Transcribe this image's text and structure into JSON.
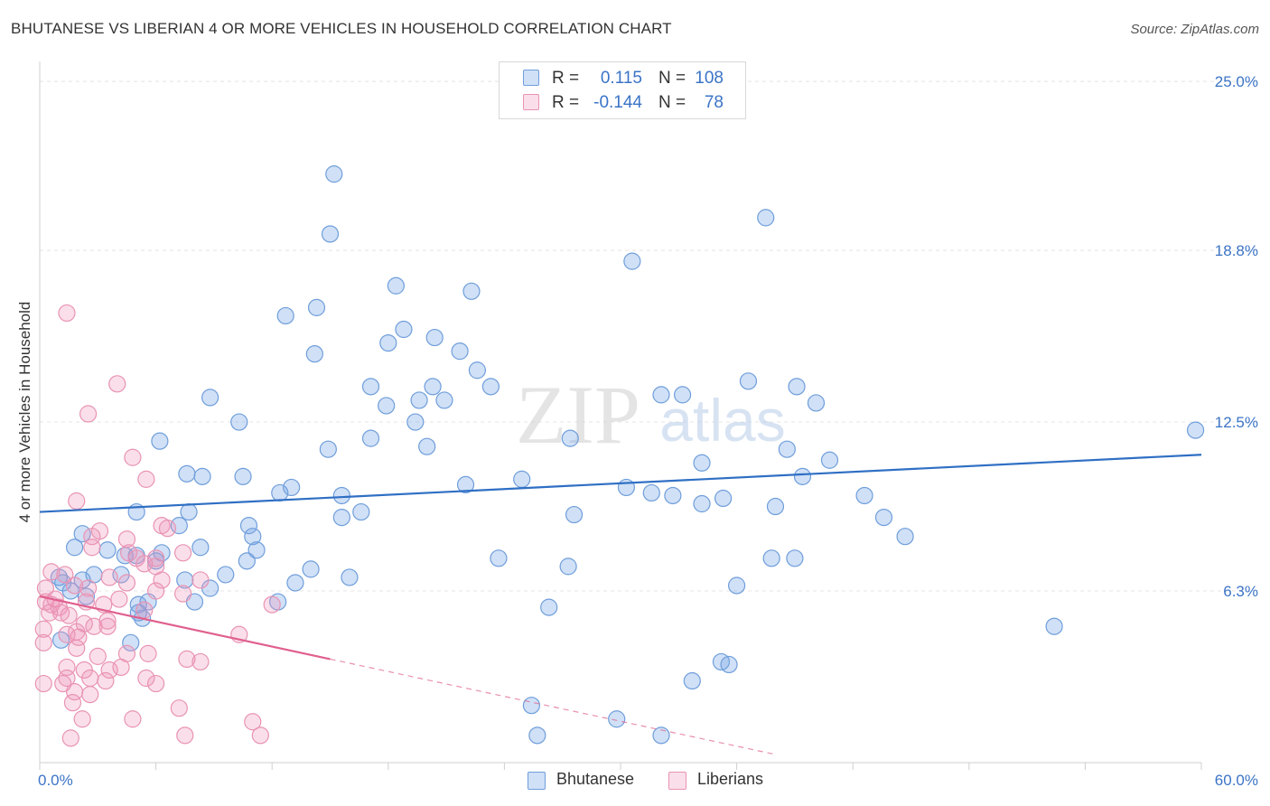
{
  "chart_data": {
    "type": "scatter",
    "title": "BHUTANESE VS LIBERIAN 4 OR MORE VEHICLES IN HOUSEHOLD CORRELATION CHART",
    "source": "Source: ZipAtlas.com",
    "xlabel": "",
    "ylabel": "4 or more Vehicles in Household",
    "xlim": [
      0,
      60
    ],
    "ylim": [
      0,
      25.6
    ],
    "x_tick_labels": [
      "0.0%",
      "60.0%"
    ],
    "y_ticks": [
      6.3,
      12.5,
      18.8,
      25.0
    ],
    "y_tick_labels": [
      "6.3%",
      "12.5%",
      "18.8%",
      "25.0%"
    ],
    "watermark": {
      "left": "ZIP",
      "right": "atlas"
    },
    "colors": {
      "bhutanese_fill": "rgba(120,165,230,0.35)",
      "bhutanese_stroke": "#6f9edb",
      "bhutanese_line": "#2f6fc4",
      "liberian_fill": "rgba(240,150,185,0.30)",
      "liberian_stroke": "#e993b3",
      "liberian_line": "#e0608e",
      "axis_label": "#3b74c6",
      "grid": "#e4e4e4"
    },
    "stats": [
      {
        "series": "Bhutanese",
        "r_label": "R =",
        "r": "0.115",
        "n_label": "N =",
        "n": "108"
      },
      {
        "series": "Liberians",
        "r_label": "R =",
        "r": "-0.144",
        "n_label": "N =",
        "n": "78"
      }
    ],
    "legend": [
      "Bhutanese",
      "Liberians"
    ],
    "series": [
      {
        "name": "Bhutanese",
        "trend": {
          "x0": 0,
          "y0": 9.2,
          "x1": 60,
          "y1": 11.3
        },
        "points": [
          [
            15.2,
            21.6
          ],
          [
            37.5,
            20.0
          ],
          [
            15.0,
            19.4
          ],
          [
            30.6,
            18.4
          ],
          [
            18.4,
            17.5
          ],
          [
            22.3,
            17.3
          ],
          [
            14.3,
            16.7
          ],
          [
            12.7,
            16.4
          ],
          [
            18.8,
            15.9
          ],
          [
            20.4,
            15.6
          ],
          [
            18.0,
            15.4
          ],
          [
            14.2,
            15.0
          ],
          [
            21.7,
            15.1
          ],
          [
            22.6,
            14.4
          ],
          [
            17.1,
            13.8
          ],
          [
            20.3,
            13.8
          ],
          [
            23.3,
            13.8
          ],
          [
            8.8,
            13.4
          ],
          [
            36.6,
            14.0
          ],
          [
            39.1,
            13.8
          ],
          [
            32.1,
            13.5
          ],
          [
            33.2,
            13.5
          ],
          [
            19.6,
            13.3
          ],
          [
            20.9,
            13.3
          ],
          [
            17.9,
            13.1
          ],
          [
            40.1,
            13.2
          ],
          [
            10.3,
            12.5
          ],
          [
            19.4,
            12.5
          ],
          [
            17.1,
            11.9
          ],
          [
            27.4,
            11.9
          ],
          [
            6.2,
            11.8
          ],
          [
            20.0,
            11.6
          ],
          [
            14.9,
            11.5
          ],
          [
            38.6,
            11.5
          ],
          [
            39.4,
            10.5
          ],
          [
            34.2,
            11.0
          ],
          [
            40.8,
            11.1
          ],
          [
            7.6,
            10.6
          ],
          [
            8.4,
            10.5
          ],
          [
            10.5,
            10.5
          ],
          [
            24.9,
            10.4
          ],
          [
            22.0,
            10.2
          ],
          [
            13.0,
            10.1
          ],
          [
            12.4,
            9.9
          ],
          [
            15.6,
            9.8
          ],
          [
            30.3,
            10.1
          ],
          [
            31.6,
            9.9
          ],
          [
            32.7,
            9.8
          ],
          [
            34.2,
            9.5
          ],
          [
            35.3,
            9.7
          ],
          [
            38.0,
            9.4
          ],
          [
            42.6,
            9.8
          ],
          [
            43.6,
            9.0
          ],
          [
            5.0,
            9.2
          ],
          [
            7.7,
            9.2
          ],
          [
            16.6,
            9.2
          ],
          [
            15.6,
            9.0
          ],
          [
            27.6,
            9.1
          ],
          [
            7.2,
            8.7
          ],
          [
            10.8,
            8.7
          ],
          [
            2.2,
            8.4
          ],
          [
            44.7,
            8.3
          ],
          [
            8.3,
            7.9
          ],
          [
            11.2,
            7.8
          ],
          [
            1.8,
            7.9
          ],
          [
            3.5,
            7.8
          ],
          [
            6.3,
            7.7
          ],
          [
            4.4,
            7.6
          ],
          [
            5.0,
            7.6
          ],
          [
            10.7,
            7.4
          ],
          [
            23.7,
            7.5
          ],
          [
            37.8,
            7.5
          ],
          [
            39.0,
            7.5
          ],
          [
            14.0,
            7.1
          ],
          [
            2.8,
            6.9
          ],
          [
            4.2,
            6.9
          ],
          [
            9.6,
            6.9
          ],
          [
            7.5,
            6.7
          ],
          [
            13.2,
            6.6
          ],
          [
            16.0,
            6.8
          ],
          [
            1.2,
            6.6
          ],
          [
            2.2,
            6.7
          ],
          [
            8.8,
            6.4
          ],
          [
            1.6,
            6.3
          ],
          [
            5.1,
            5.8
          ],
          [
            8.0,
            5.9
          ],
          [
            12.3,
            5.9
          ],
          [
            5.6,
            5.9
          ],
          [
            36.0,
            6.5
          ],
          [
            26.3,
            5.7
          ],
          [
            5.3,
            5.3
          ],
          [
            5.1,
            5.5
          ],
          [
            52.4,
            5.0
          ],
          [
            1.1,
            4.5
          ],
          [
            4.7,
            4.4
          ],
          [
            35.2,
            3.7
          ],
          [
            35.6,
            3.6
          ],
          [
            33.7,
            3.0
          ],
          [
            25.4,
            2.1
          ],
          [
            29.8,
            1.6
          ],
          [
            25.7,
            1.0
          ],
          [
            32.1,
            1.0
          ],
          [
            59.7,
            12.2
          ],
          [
            27.3,
            7.2
          ],
          [
            11.0,
            8.3
          ],
          [
            1.0,
            6.8
          ],
          [
            2.4,
            6.1
          ],
          [
            6.0,
            7.4
          ]
        ]
      },
      {
        "name": "Liberians",
        "trend": {
          "x0": 0,
          "y0": 6.1,
          "x1": 15,
          "y1": 3.8,
          "dash_x1": 38,
          "dash_y1": 0.3
        },
        "points": [
          [
            1.4,
            16.5
          ],
          [
            4.0,
            13.9
          ],
          [
            2.5,
            12.8
          ],
          [
            4.8,
            11.2
          ],
          [
            5.5,
            10.4
          ],
          [
            1.9,
            9.6
          ],
          [
            6.3,
            8.7
          ],
          [
            4.5,
            8.2
          ],
          [
            6.6,
            8.6
          ],
          [
            2.7,
            8.3
          ],
          [
            3.1,
            8.5
          ],
          [
            2.7,
            7.9
          ],
          [
            4.6,
            7.7
          ],
          [
            5.0,
            7.5
          ],
          [
            6.0,
            7.5
          ],
          [
            7.4,
            7.7
          ],
          [
            6.0,
            7.2
          ],
          [
            5.4,
            7.3
          ],
          [
            0.6,
            7.0
          ],
          [
            1.3,
            6.9
          ],
          [
            3.6,
            6.8
          ],
          [
            4.5,
            6.6
          ],
          [
            6.3,
            6.7
          ],
          [
            8.3,
            6.7
          ],
          [
            0.3,
            6.4
          ],
          [
            1.8,
            6.5
          ],
          [
            2.5,
            6.4
          ],
          [
            4.1,
            6.0
          ],
          [
            6.0,
            6.3
          ],
          [
            7.4,
            6.2
          ],
          [
            0.3,
            5.9
          ],
          [
            1.0,
            5.7
          ],
          [
            2.4,
            5.9
          ],
          [
            3.3,
            5.8
          ],
          [
            5.4,
            5.6
          ],
          [
            0.5,
            5.5
          ],
          [
            1.5,
            5.4
          ],
          [
            2.3,
            5.1
          ],
          [
            2.8,
            5.0
          ],
          [
            3.5,
            5.0
          ],
          [
            0.2,
            4.9
          ],
          [
            1.4,
            4.7
          ],
          [
            1.9,
            4.8
          ],
          [
            0.2,
            4.4
          ],
          [
            1.9,
            4.2
          ],
          [
            3.0,
            3.9
          ],
          [
            4.5,
            4.0
          ],
          [
            5.6,
            4.0
          ],
          [
            7.6,
            3.8
          ],
          [
            8.3,
            3.7
          ],
          [
            1.4,
            3.5
          ],
          [
            2.3,
            3.4
          ],
          [
            3.6,
            3.4
          ],
          [
            4.2,
            3.5
          ],
          [
            1.4,
            3.1
          ],
          [
            2.6,
            3.1
          ],
          [
            3.4,
            3.0
          ],
          [
            5.5,
            3.1
          ],
          [
            6.0,
            2.9
          ],
          [
            1.2,
            2.9
          ],
          [
            0.2,
            2.9
          ],
          [
            1.8,
            2.6
          ],
          [
            2.6,
            2.5
          ],
          [
            7.2,
            2.0
          ],
          [
            11.0,
            1.5
          ],
          [
            1.7,
            2.2
          ],
          [
            2.2,
            1.6
          ],
          [
            4.8,
            1.6
          ],
          [
            1.6,
            0.9
          ],
          [
            7.5,
            1.0
          ],
          [
            11.4,
            1.0
          ],
          [
            12.0,
            5.8
          ],
          [
            10.3,
            4.7
          ],
          [
            0.6,
            5.8
          ],
          [
            1.1,
            5.5
          ],
          [
            0.8,
            6.0
          ],
          [
            3.5,
            5.2
          ],
          [
            2.0,
            4.6
          ]
        ]
      }
    ]
  }
}
